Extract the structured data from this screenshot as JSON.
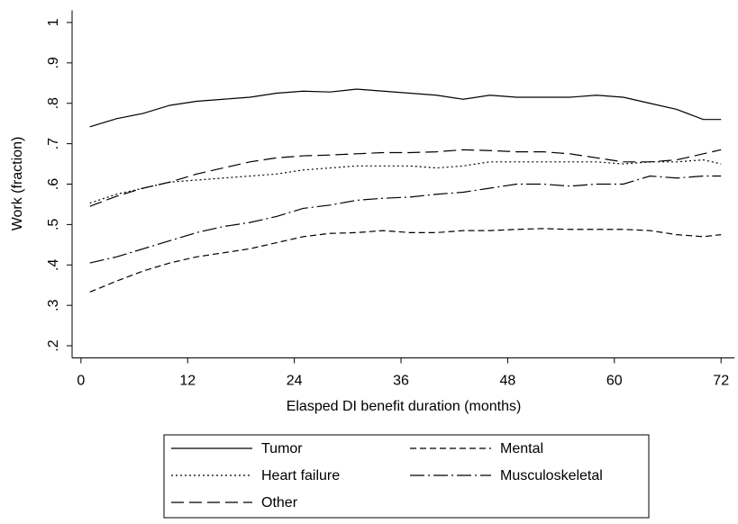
{
  "chart_data": {
    "type": "line",
    "x_label": "Elasped DI benefit duration (months)",
    "y_label": "Work (fraction)",
    "x": [
      1,
      4,
      7,
      10,
      13,
      16,
      19,
      22,
      25,
      28,
      31,
      34,
      37,
      40,
      43,
      46,
      49,
      52,
      55,
      58,
      61,
      64,
      67,
      70,
      72
    ],
    "series": [
      {
        "name": "Tumor",
        "color": "#000000",
        "dash": "solid",
        "values": [
          0.742,
          0.762,
          0.775,
          0.795,
          0.805,
          0.81,
          0.815,
          0.825,
          0.83,
          0.828,
          0.835,
          0.83,
          0.825,
          0.82,
          0.81,
          0.82,
          0.815,
          0.815,
          0.815,
          0.82,
          0.815,
          0.8,
          0.785,
          0.76,
          0.76
        ]
      },
      {
        "name": "Mental",
        "color": "#000000",
        "dash": "dash",
        "values": [
          0.333,
          0.36,
          0.385,
          0.405,
          0.42,
          0.43,
          0.44,
          0.455,
          0.47,
          0.478,
          0.48,
          0.485,
          0.48,
          0.48,
          0.485,
          0.485,
          0.488,
          0.49,
          0.488,
          0.488,
          0.488,
          0.485,
          0.475,
          0.47,
          0.475
        ]
      },
      {
        "name": "Heart failure",
        "color": "#000000",
        "dash": "dot",
        "values": [
          0.553,
          0.575,
          0.59,
          0.605,
          0.61,
          0.615,
          0.62,
          0.625,
          0.635,
          0.64,
          0.645,
          0.645,
          0.645,
          0.64,
          0.645,
          0.655,
          0.655,
          0.655,
          0.655,
          0.655,
          0.65,
          0.655,
          0.655,
          0.66,
          0.65
        ]
      },
      {
        "name": "Musculoskeletal",
        "color": "#000000",
        "dash": "dashdot",
        "values": [
          0.405,
          0.42,
          0.44,
          0.46,
          0.48,
          0.495,
          0.505,
          0.52,
          0.54,
          0.548,
          0.56,
          0.565,
          0.568,
          0.575,
          0.58,
          0.59,
          0.6,
          0.6,
          0.595,
          0.6,
          0.6,
          0.62,
          0.615,
          0.62,
          0.62
        ]
      },
      {
        "name": "Other",
        "color": "#000000",
        "dash": "longdash",
        "values": [
          0.545,
          0.57,
          0.59,
          0.605,
          0.625,
          0.64,
          0.655,
          0.665,
          0.67,
          0.672,
          0.675,
          0.678,
          0.678,
          0.68,
          0.685,
          0.683,
          0.68,
          0.68,
          0.675,
          0.665,
          0.655,
          0.655,
          0.66,
          0.675,
          0.685
        ]
      }
    ],
    "xlim": [
      -1,
      73.5
    ],
    "xticks": [
      0,
      12,
      24,
      36,
      48,
      60,
      72
    ],
    "ylim": [
      0.17,
      1.03
    ],
    "yticks": [
      {
        "value": 0.2,
        "label": ".2"
      },
      {
        "value": 0.3,
        "label": ".3"
      },
      {
        "value": 0.4,
        "label": ".4"
      },
      {
        "value": 0.5,
        "label": ".5"
      },
      {
        "value": 0.6,
        "label": ".6"
      },
      {
        "value": 0.7,
        "label": ".7"
      },
      {
        "value": 0.8,
        "label": ".8"
      },
      {
        "value": 0.9,
        "label": ".9"
      },
      1
    ],
    "legend": "bottom"
  }
}
